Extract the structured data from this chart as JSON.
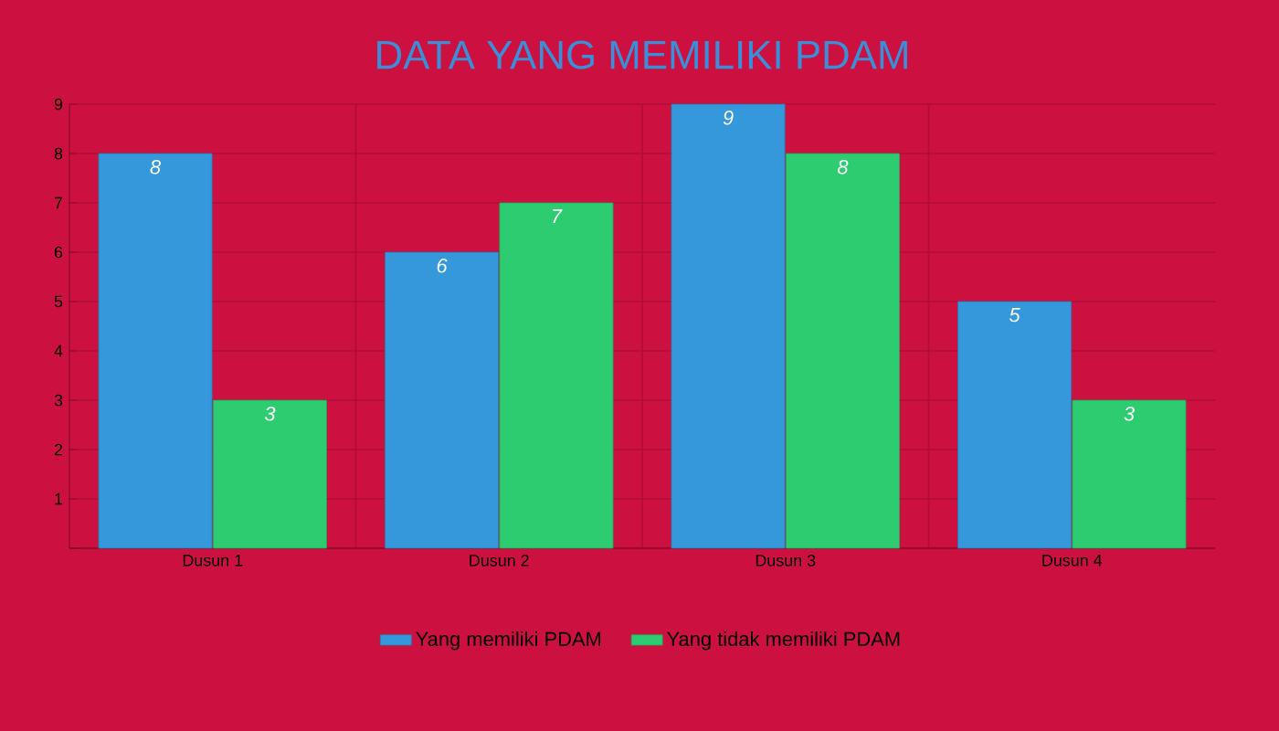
{
  "chart_data": {
    "type": "bar",
    "title": "DATA YANG MEMILIKI PDAM",
    "categories": [
      "Dusun 1",
      "Dusun 2",
      "Dusun 3",
      "Dusun 4"
    ],
    "series": [
      {
        "name": "Yang memiliki PDAM",
        "color": "#3498db",
        "values": [
          8,
          6,
          9,
          5
        ]
      },
      {
        "name": "Yang tidak memiliki PDAM",
        "color": "#2ecc71",
        "values": [
          3,
          7,
          8,
          3
        ]
      }
    ],
    "ylim": [
      0,
      9
    ],
    "yticks": [
      {
        "value": 0,
        "label": null
      },
      1,
      2,
      3,
      4,
      5,
      6,
      7,
      8,
      9
    ],
    "grid": true,
    "legend": "bottom",
    "data_labels": true
  }
}
